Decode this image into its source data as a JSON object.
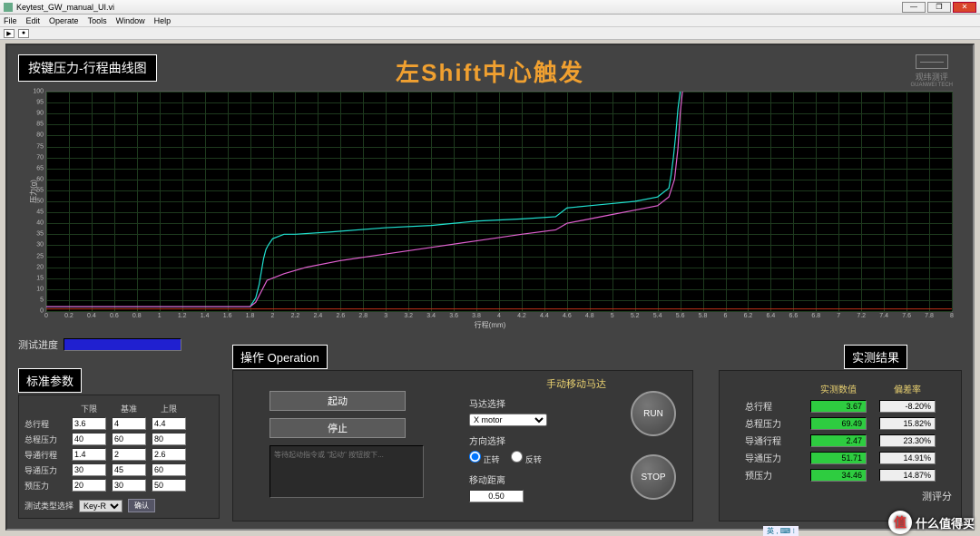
{
  "window": {
    "title": "Keytest_GW_manual_UI.vi"
  },
  "menu": [
    "File",
    "Edit",
    "Operate",
    "Tools",
    "Window",
    "Help"
  ],
  "chart": {
    "tab_title": "按键压力-行程曲线图",
    "main_title": "左Shift中心触发",
    "logo_text": "观纬测评",
    "logo_sub": "GUANWEI TECH",
    "xlabel": "行程(mm)",
    "ylabel": "压力(g)",
    "xlim": [
      0,
      8
    ],
    "xtick_step": 0.2,
    "ylim": [
      0,
      100
    ],
    "ytick_step": 5,
    "background": "#000000",
    "grid_color": "#1e3a1e",
    "series": [
      {
        "name": "press",
        "color": "#20e0d0",
        "width": 1.2,
        "points": [
          [
            0,
            2
          ],
          [
            0.5,
            2
          ],
          [
            1.0,
            2
          ],
          [
            1.5,
            2
          ],
          [
            1.8,
            2
          ],
          [
            1.85,
            6
          ],
          [
            1.88,
            12
          ],
          [
            1.9,
            18
          ],
          [
            1.92,
            24
          ],
          [
            1.94,
            28
          ],
          [
            1.96,
            30
          ],
          [
            2.0,
            33
          ],
          [
            2.1,
            35
          ],
          [
            2.2,
            35
          ],
          [
            2.5,
            36
          ],
          [
            3.0,
            38
          ],
          [
            3.4,
            39
          ],
          [
            3.8,
            41
          ],
          [
            4.2,
            42
          ],
          [
            4.5,
            43
          ],
          [
            4.6,
            47
          ],
          [
            4.8,
            48
          ],
          [
            5.0,
            49
          ],
          [
            5.2,
            50
          ],
          [
            5.4,
            52
          ],
          [
            5.5,
            56
          ],
          [
            5.52,
            62
          ],
          [
            5.54,
            70
          ],
          [
            5.56,
            80
          ],
          [
            5.58,
            92
          ],
          [
            5.6,
            100
          ]
        ]
      },
      {
        "name": "release",
        "color": "#e060d0",
        "width": 1.2,
        "points": [
          [
            0,
            2
          ],
          [
            0.5,
            2
          ],
          [
            1.0,
            2
          ],
          [
            1.5,
            2
          ],
          [
            1.8,
            2
          ],
          [
            1.85,
            4
          ],
          [
            1.9,
            9
          ],
          [
            1.95,
            14
          ],
          [
            2.0,
            15
          ],
          [
            2.1,
            17
          ],
          [
            2.3,
            20
          ],
          [
            2.6,
            23
          ],
          [
            3.0,
            26
          ],
          [
            3.4,
            29
          ],
          [
            3.8,
            32
          ],
          [
            4.2,
            35
          ],
          [
            4.5,
            37
          ],
          [
            4.6,
            40
          ],
          [
            4.8,
            42
          ],
          [
            5.0,
            44
          ],
          [
            5.2,
            46
          ],
          [
            5.4,
            48
          ],
          [
            5.5,
            52
          ],
          [
            5.55,
            60
          ],
          [
            5.58,
            74
          ],
          [
            5.6,
            90
          ],
          [
            5.62,
            100
          ]
        ]
      }
    ],
    "baseline": {
      "color": "#c03018",
      "y": 1
    }
  },
  "progress": {
    "label": "测试进度"
  },
  "std_params": {
    "title": "标准参数",
    "headers": [
      "下限",
      "基准",
      "上限"
    ],
    "rows": [
      {
        "label": "总行程",
        "lo": "3.6",
        "mid": "4",
        "hi": "4.4"
      },
      {
        "label": "总程压力",
        "lo": "40",
        "mid": "60",
        "hi": "80"
      },
      {
        "label": "导通行程",
        "lo": "1.4",
        "mid": "2",
        "hi": "2.6"
      },
      {
        "label": "导通压力",
        "lo": "30",
        "mid": "45",
        "hi": "60"
      },
      {
        "label": "预压力",
        "lo": "20",
        "mid": "30",
        "hi": "50"
      }
    ],
    "select_label": "测试类型选择",
    "select_value": "Key-R",
    "btn": "确认"
  },
  "operation": {
    "title": "操作 Operation",
    "start_btn": "起动",
    "stop_btn": "停止",
    "hint": "等待起动指令或 \"起动\" 按钮按下...",
    "manual": {
      "title": "手动移动马达",
      "motor_label": "马达选择",
      "motor_value": "X motor",
      "dir_label": "方向选择",
      "dir_fwd": "正转",
      "dir_rev": "反转",
      "dist_label": "移动距离",
      "dist_value": "0.50",
      "run": "RUN",
      "stop": "STOP"
    }
  },
  "results": {
    "title": "实测结果",
    "headers": [
      "实测数值",
      "偏差率"
    ],
    "rows": [
      {
        "label": "总行程",
        "val": "3.67",
        "dev": "-8.20%"
      },
      {
        "label": "总程压力",
        "val": "69.49",
        "dev": "15.82%"
      },
      {
        "label": "导通行程",
        "val": "2.47",
        "dev": "23.30%"
      },
      {
        "label": "导通压力",
        "val": "51.71",
        "dev": "14.91%"
      },
      {
        "label": "预压力",
        "val": "34.46",
        "dev": "14.87%"
      }
    ],
    "score_label": "测评分"
  },
  "watermark": {
    "char": "值",
    "text": "什么值得买"
  },
  "tray": "英 , ⌨ ⁝"
}
